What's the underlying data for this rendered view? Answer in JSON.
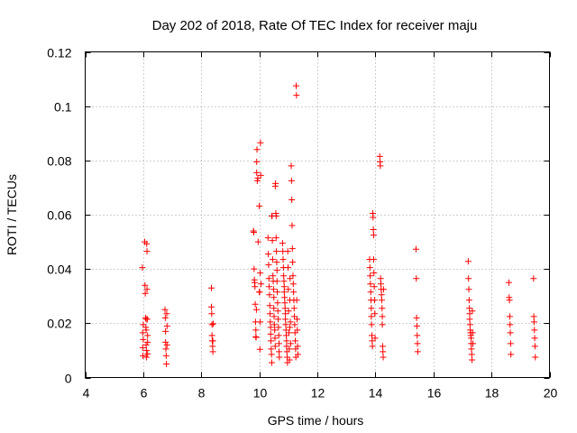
{
  "chart_data": {
    "type": "scatter",
    "title": "Day 202 of 2018, Rate Of TEC Index for receiver maju",
    "xlabel": "GPS time / hours",
    "ylabel": "ROTI / TECUs",
    "xlim": [
      4,
      20
    ],
    "ylim": [
      0,
      0.12
    ],
    "x_ticks": [
      4,
      6,
      8,
      10,
      12,
      14,
      16,
      18,
      20
    ],
    "x_tick_labels": [
      "4",
      "6",
      "8",
      "10",
      "12",
      "14",
      "16",
      "18",
      "20"
    ],
    "y_ticks": [
      0,
      0.02,
      0.04,
      0.06,
      0.08,
      0.1,
      0.12
    ],
    "y_tick_labels": [
      "0",
      "0.02",
      "0.04",
      "0.06",
      "0.08",
      "0.1",
      "0.12"
    ],
    "grid": true,
    "marker": "+",
    "color": "#ff0000",
    "series": [
      {
        "name": "ROTI",
        "points": [
          [
            5.97,
            0.0405
          ],
          [
            5.98,
            0.0165
          ],
          [
            5.98,
            0.011
          ],
          [
            5.99,
            0.008
          ],
          [
            6.0,
            0.0195
          ],
          [
            6.0,
            0.014
          ],
          [
            6.05,
            0.05
          ],
          [
            6.06,
            0.034
          ],
          [
            6.07,
            0.031
          ],
          [
            6.08,
            0.022
          ],
          [
            6.09,
            0.0185
          ],
          [
            6.1,
            0.0215
          ],
          [
            6.1,
            0.0175
          ],
          [
            6.1,
            0.012
          ],
          [
            6.11,
            0.01
          ],
          [
            6.11,
            0.0075
          ],
          [
            6.12,
            0.0493
          ],
          [
            6.13,
            0.0465
          ],
          [
            6.13,
            0.0325
          ],
          [
            6.14,
            0.0215
          ],
          [
            6.15,
            0.0155
          ],
          [
            6.15,
            0.013
          ],
          [
            6.15,
            0.0087
          ],
          [
            6.75,
            0.025
          ],
          [
            6.76,
            0.022
          ],
          [
            6.77,
            0.017
          ],
          [
            6.77,
            0.013
          ],
          [
            6.78,
            0.0105
          ],
          [
            6.79,
            0.008
          ],
          [
            6.8,
            0.005
          ],
          [
            6.81,
            0.0235
          ],
          [
            6.82,
            0.019
          ],
          [
            6.82,
            0.012
          ],
          [
            8.35,
            0.033
          ],
          [
            8.35,
            0.026
          ],
          [
            8.36,
            0.0235
          ],
          [
            8.37,
            0.0195
          ],
          [
            8.37,
            0.0155
          ],
          [
            8.38,
            0.0135
          ],
          [
            8.39,
            0.0115
          ],
          [
            8.4,
            0.0095
          ],
          [
            8.4,
            0.0135
          ],
          [
            8.41,
            0.0198
          ],
          [
            9.8,
            0.054
          ],
          [
            9.81,
            0.0535
          ],
          [
            9.82,
            0.04
          ],
          [
            9.83,
            0.036
          ],
          [
            9.84,
            0.035
          ],
          [
            9.85,
            0.0335
          ],
          [
            9.86,
            0.027
          ],
          [
            9.87,
            0.0205
          ],
          [
            9.88,
            0.0175
          ],
          [
            9.88,
            0.015
          ],
          [
            9.89,
            0.0148
          ],
          [
            9.9,
            0.025
          ],
          [
            9.91,
            0.0755
          ],
          [
            9.91,
            0.0795
          ],
          [
            9.92,
            0.084
          ],
          [
            9.93,
            0.0725
          ],
          [
            9.95,
            0.0735
          ],
          [
            9.96,
            0.05
          ],
          [
            10.0,
            0.0632
          ],
          [
            10.0,
            0.0315
          ],
          [
            10.01,
            0.0315
          ],
          [
            10.02,
            0.0104
          ],
          [
            10.03,
            0.0205
          ],
          [
            10.03,
            0.0385
          ],
          [
            10.04,
            0.0865
          ],
          [
            10.05,
            0.0745
          ],
          [
            10.06,
            0.0345
          ],
          [
            10.3,
            0.0515
          ],
          [
            10.31,
            0.0455
          ],
          [
            10.32,
            0.0415
          ],
          [
            10.33,
            0.0365
          ],
          [
            10.34,
            0.0335
          ],
          [
            10.35,
            0.0305
          ],
          [
            10.36,
            0.0265
          ],
          [
            10.37,
            0.0235
          ],
          [
            10.38,
            0.0205
          ],
          [
            10.39,
            0.0185
          ],
          [
            10.39,
            0.016
          ],
          [
            10.4,
            0.0135
          ],
          [
            10.41,
            0.0105
          ],
          [
            10.42,
            0.0085
          ],
          [
            10.43,
            0.0055
          ],
          [
            10.43,
            0.0595
          ],
          [
            10.44,
            0.0595
          ],
          [
            10.45,
            0.0505
          ],
          [
            10.46,
            0.0435
          ],
          [
            10.47,
            0.0375
          ],
          [
            10.48,
            0.0355
          ],
          [
            10.49,
            0.0325
          ],
          [
            10.5,
            0.0295
          ],
          [
            10.5,
            0.0255
          ],
          [
            10.51,
            0.0225
          ],
          [
            10.52,
            0.0195
          ],
          [
            10.53,
            0.0175
          ],
          [
            10.54,
            0.0145
          ],
          [
            10.55,
            0.0115
          ],
          [
            10.55,
            0.0705
          ],
          [
            10.56,
            0.0715
          ],
          [
            10.57,
            0.0605
          ],
          [
            10.58,
            0.0595
          ],
          [
            10.58,
            0.0515
          ],
          [
            10.59,
            0.0465
          ],
          [
            10.6,
            0.0425
          ],
          [
            10.61,
            0.0395
          ],
          [
            10.61,
            0.0355
          ],
          [
            10.62,
            0.0315
          ],
          [
            10.63,
            0.0275
          ],
          [
            10.64,
            0.0245
          ],
          [
            10.65,
            0.0215
          ],
          [
            10.66,
            0.0185
          ],
          [
            10.67,
            0.0155
          ],
          [
            10.68,
            0.0125
          ],
          [
            10.68,
            0.0095
          ],
          [
            10.69,
            0.0075
          ],
          [
            10.8,
            0.0495
          ],
          [
            10.81,
            0.0465
          ],
          [
            10.82,
            0.0435
          ],
          [
            10.83,
            0.0405
          ],
          [
            10.84,
            0.0375
          ],
          [
            10.85,
            0.0355
          ],
          [
            10.86,
            0.0335
          ],
          [
            10.86,
            0.0315
          ],
          [
            10.87,
            0.0295
          ],
          [
            10.88,
            0.0275
          ],
          [
            10.89,
            0.0255
          ],
          [
            10.9,
            0.0235
          ],
          [
            10.9,
            0.0215
          ],
          [
            10.91,
            0.0195
          ],
          [
            10.92,
            0.0175
          ],
          [
            10.93,
            0.0155
          ],
          [
            10.94,
            0.0135
          ],
          [
            10.94,
            0.0115
          ],
          [
            10.95,
            0.0095
          ],
          [
            10.96,
            0.0075
          ],
          [
            10.97,
            0.0055
          ],
          [
            10.98,
            0.0465
          ],
          [
            10.99,
            0.0405
          ],
          [
            11.0,
            0.0325
          ],
          [
            11.01,
            0.0245
          ],
          [
            11.02,
            0.0165
          ],
          [
            11.03,
            0.0105
          ],
          [
            11.04,
            0.0065
          ],
          [
            11.05,
            0.0185
          ],
          [
            11.05,
            0.0285
          ],
          [
            11.06,
            0.0365
          ],
          [
            11.07,
            0.0205
          ],
          [
            11.08,
            0.0125
          ],
          [
            11.1,
            0.078
          ],
          [
            11.11,
            0.0725
          ],
          [
            11.12,
            0.0655
          ],
          [
            11.13,
            0.056
          ],
          [
            11.14,
            0.0475
          ],
          [
            11.15,
            0.0425
          ],
          [
            11.16,
            0.0375
          ],
          [
            11.17,
            0.0345
          ],
          [
            11.18,
            0.0315
          ],
          [
            11.19,
            0.0285
          ],
          [
            11.2,
            0.0255
          ],
          [
            11.21,
            0.0225
          ],
          [
            11.22,
            0.0195
          ],
          [
            11.23,
            0.0165
          ],
          [
            11.24,
            0.0135
          ],
          [
            11.25,
            0.0105
          ],
          [
            11.26,
            0.0075
          ],
          [
            11.27,
            0.1075
          ],
          [
            11.28,
            0.104
          ],
          [
            11.29,
            0.0285
          ],
          [
            11.3,
            0.0215
          ],
          [
            11.31,
            0.0175
          ],
          [
            11.32,
            0.0115
          ],
          [
            11.33,
            0.0085
          ],
          [
            13.8,
            0.0435
          ],
          [
            13.81,
            0.0405
          ],
          [
            13.82,
            0.0375
          ],
          [
            13.83,
            0.0345
          ],
          [
            13.84,
            0.0315
          ],
          [
            13.85,
            0.0285
          ],
          [
            13.86,
            0.0255
          ],
          [
            13.86,
            0.0225
          ],
          [
            13.87,
            0.0195
          ],
          [
            13.88,
            0.0155
          ],
          [
            13.89,
            0.0135
          ],
          [
            13.9,
            0.0115
          ],
          [
            13.91,
            0.0605
          ],
          [
            13.92,
            0.059
          ],
          [
            13.93,
            0.0545
          ],
          [
            13.94,
            0.0525
          ],
          [
            13.94,
            0.0435
          ],
          [
            13.95,
            0.0385
          ],
          [
            13.96,
            0.0335
          ],
          [
            13.97,
            0.0285
          ],
          [
            13.98,
            0.0235
          ],
          [
            13.99,
            0.0145
          ],
          [
            14.15,
            0.0815
          ],
          [
            14.16,
            0.0795
          ],
          [
            14.17,
            0.078
          ],
          [
            14.18,
            0.0365
          ],
          [
            14.19,
            0.0345
          ],
          [
            14.2,
            0.0325
          ],
          [
            14.21,
            0.0305
          ],
          [
            14.22,
            0.0285
          ],
          [
            14.23,
            0.0255
          ],
          [
            14.24,
            0.0225
          ],
          [
            14.24,
            0.0195
          ],
          [
            14.25,
            0.0115
          ],
          [
            14.26,
            0.0095
          ],
          [
            14.27,
            0.0075
          ],
          [
            14.28,
            0.0325
          ],
          [
            15.4,
            0.0473
          ],
          [
            15.41,
            0.0365
          ],
          [
            15.42,
            0.022
          ],
          [
            15.43,
            0.019
          ],
          [
            15.44,
            0.0155
          ],
          [
            15.45,
            0.0125
          ],
          [
            15.46,
            0.0095
          ],
          [
            17.2,
            0.0428
          ],
          [
            17.21,
            0.0365
          ],
          [
            17.22,
            0.0325
          ],
          [
            17.23,
            0.0285
          ],
          [
            17.24,
            0.0255
          ],
          [
            17.25,
            0.0235
          ],
          [
            17.25,
            0.0215
          ],
          [
            17.26,
            0.0195
          ],
          [
            17.27,
            0.0175
          ],
          [
            17.28,
            0.0165
          ],
          [
            17.29,
            0.0155
          ],
          [
            17.3,
            0.0145
          ],
          [
            17.3,
            0.0125
          ],
          [
            17.31,
            0.0105
          ],
          [
            17.32,
            0.0085
          ],
          [
            17.33,
            0.0065
          ],
          [
            17.34,
            0.0245
          ],
          [
            17.35,
            0.0165
          ],
          [
            17.36,
            0.0125
          ],
          [
            18.6,
            0.035
          ],
          [
            18.61,
            0.0295
          ],
          [
            18.62,
            0.0285
          ],
          [
            18.63,
            0.0225
          ],
          [
            18.64,
            0.0195
          ],
          [
            18.65,
            0.0165
          ],
          [
            18.66,
            0.0125
          ],
          [
            18.67,
            0.0085
          ],
          [
            19.45,
            0.0365
          ],
          [
            19.46,
            0.0225
          ],
          [
            19.47,
            0.0205
          ],
          [
            19.48,
            0.0175
          ],
          [
            19.49,
            0.0145
          ],
          [
            19.5,
            0.0115
          ],
          [
            19.51,
            0.0075
          ]
        ]
      }
    ]
  }
}
